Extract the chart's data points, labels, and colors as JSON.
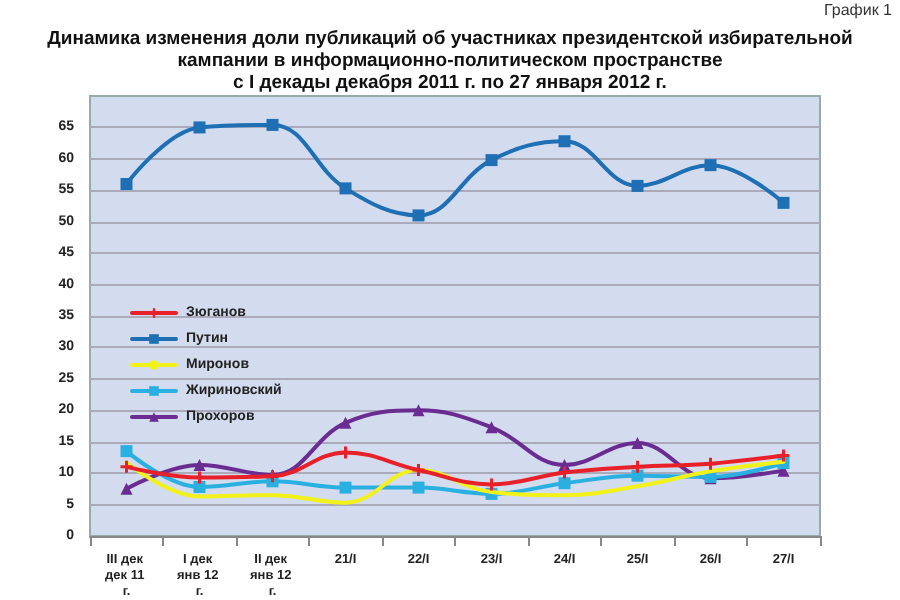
{
  "chart_data": {
    "type": "line",
    "title": "Динамика изменения доли публикаций об участниках президентской избирательной\nкампании в информационно-политическом пространстве\nс I декады декабря 2011 г. по 27 января 2012 г.",
    "annotations": [
      "График 1"
    ],
    "categories": [
      "III дек дек 11 г.",
      "I дек янв 12 г.",
      "II дек янв 12 г.",
      "21/I",
      "22/I",
      "23/I",
      "24/I",
      "25/I",
      "26/I",
      "27/I"
    ],
    "series": [
      {
        "name": "Зюганов",
        "color": "#e8202a",
        "marker": "cross",
        "values": [
          11,
          9.3,
          9.5,
          13.3,
          10.5,
          8.2,
          10.1,
          11,
          11.5,
          12.8
        ]
      },
      {
        "name": "Путин",
        "color": "#1f6fb5",
        "marker": "square",
        "values": [
          56,
          65,
          65.4,
          55.3,
          51,
          59.8,
          62.8,
          55.7,
          59,
          53
        ]
      },
      {
        "name": "Миронов",
        "color": "#f2f21a",
        "marker": "none",
        "values": [
          11.7,
          6.3,
          6.5,
          5.3,
          10.5,
          7,
          6.5,
          7.9,
          10.3,
          11.8
        ]
      },
      {
        "name": "Жириновский",
        "color": "#2ab0e0",
        "marker": "square",
        "values": [
          13.5,
          7.8,
          8.7,
          7.7,
          7.7,
          6.7,
          8.4,
          9.6,
          9.4,
          11.6
        ]
      },
      {
        "name": "Прохоров",
        "color": "#6a2c91",
        "marker": "triangle",
        "values": [
          7.5,
          11.3,
          9.7,
          18,
          20,
          17.3,
          11.3,
          14.8,
          9.2,
          10.4
        ]
      }
    ],
    "ylim": [
      0,
      70
    ],
    "yticks": [
      0,
      5,
      10,
      15,
      20,
      25,
      30,
      35,
      40,
      45,
      50,
      55,
      60,
      65
    ],
    "grid": "y",
    "legend": "left",
    "line_style": "solid"
  }
}
